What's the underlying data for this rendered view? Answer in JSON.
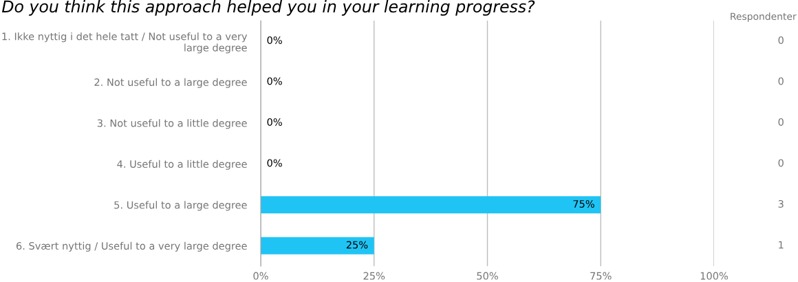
{
  "chart_data": {
    "type": "bar",
    "orientation": "horizontal",
    "title": "Do you think this approach helped you in your learning progress?",
    "categories": [
      "1. Ikke nyttig i det hele tatt / Not useful to a very large degree",
      "2. Not useful to a large degree",
      "3. Not useful to a little degree",
      "4. Useful to a little degree",
      "5. Useful to a large degree",
      "6. Svært nyttig / Useful to a very large degree"
    ],
    "values": [
      0,
      0,
      0,
      0,
      75,
      25
    ],
    "value_labels": [
      "0%",
      "0%",
      "0%",
      "0%",
      "75%",
      "25%"
    ],
    "color": "#20c4f4",
    "xlim": [
      0,
      100
    ],
    "xticks": [
      {
        "value": 0,
        "label": "0%"
      },
      {
        "value": 25,
        "label": "25%"
      },
      {
        "value": 50,
        "label": "50%"
      },
      {
        "value": 75,
        "label": "75%"
      },
      {
        "value": 100,
        "label": "100%"
      }
    ],
    "grid": "x",
    "annotations": [
      "Respondenter",
      "0",
      "0",
      "0",
      "0",
      "3",
      "1"
    ]
  }
}
